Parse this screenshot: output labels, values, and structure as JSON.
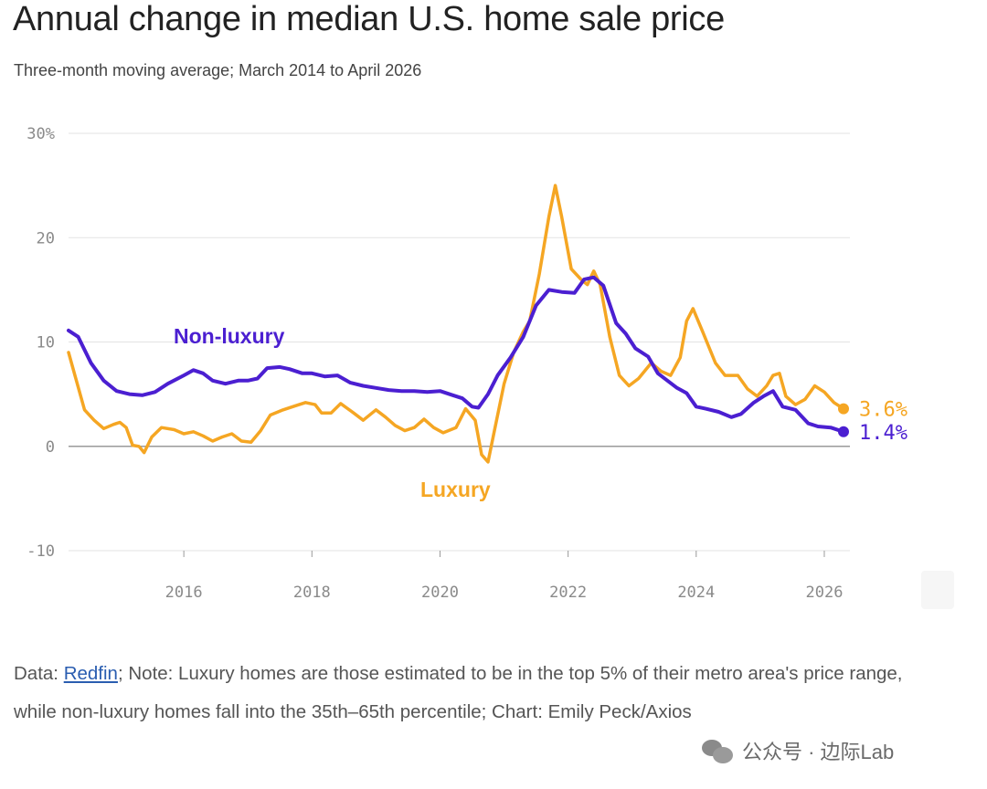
{
  "title": "Annual change in median U.S. home sale price",
  "subtitle": "Three-month moving average; March 2014 to April 2026",
  "chart_data": {
    "type": "line",
    "title": "Annual change in median U.S. home sale price",
    "subtitle": "Three-month moving average; March 2014 to April 2026",
    "xlabel": "",
    "ylabel": "",
    "xlim": [
      2014.2,
      2026.4
    ],
    "ylim": [
      -10,
      30
    ],
    "x_ticks": [
      "2016",
      "2018",
      "2020",
      "2022",
      "2024",
      "2026"
    ],
    "y_ticks": [
      "30%",
      "20",
      "10",
      "0",
      "-10"
    ],
    "grid": true,
    "legend": "inline labels",
    "series": [
      {
        "name": "Non-luxury",
        "color": "#4b1fd1",
        "end_label": "1.4%",
        "points": [
          [
            2014.2,
            11.1
          ],
          [
            2014.35,
            10.5
          ],
          [
            2014.55,
            8.0
          ],
          [
            2014.75,
            6.3
          ],
          [
            2014.95,
            5.3
          ],
          [
            2015.15,
            5.0
          ],
          [
            2015.35,
            4.9
          ],
          [
            2015.55,
            5.2
          ],
          [
            2015.75,
            6.0
          ],
          [
            2016.0,
            6.8
          ],
          [
            2016.15,
            7.3
          ],
          [
            2016.3,
            7.0
          ],
          [
            2016.45,
            6.3
          ],
          [
            2016.65,
            6.0
          ],
          [
            2016.85,
            6.3
          ],
          [
            2017.0,
            6.3
          ],
          [
            2017.15,
            6.5
          ],
          [
            2017.3,
            7.5
          ],
          [
            2017.5,
            7.6
          ],
          [
            2017.65,
            7.4
          ],
          [
            2017.85,
            7.0
          ],
          [
            2018.0,
            7.0
          ],
          [
            2018.2,
            6.7
          ],
          [
            2018.4,
            6.8
          ],
          [
            2018.6,
            6.1
          ],
          [
            2018.8,
            5.8
          ],
          [
            2019.0,
            5.6
          ],
          [
            2019.2,
            5.4
          ],
          [
            2019.4,
            5.3
          ],
          [
            2019.6,
            5.3
          ],
          [
            2019.8,
            5.2
          ],
          [
            2020.0,
            5.3
          ],
          [
            2020.2,
            4.9
          ],
          [
            2020.35,
            4.6
          ],
          [
            2020.5,
            3.8
          ],
          [
            2020.6,
            3.7
          ],
          [
            2020.75,
            5.0
          ],
          [
            2020.9,
            6.8
          ],
          [
            2021.1,
            8.5
          ],
          [
            2021.3,
            10.5
          ],
          [
            2021.5,
            13.5
          ],
          [
            2021.7,
            15.0
          ],
          [
            2021.9,
            14.8
          ],
          [
            2022.1,
            14.7
          ],
          [
            2022.25,
            16.0
          ],
          [
            2022.4,
            16.2
          ],
          [
            2022.55,
            15.4
          ],
          [
            2022.75,
            11.8
          ],
          [
            2022.9,
            10.8
          ],
          [
            2023.05,
            9.4
          ],
          [
            2023.25,
            8.6
          ],
          [
            2023.4,
            7.0
          ],
          [
            2023.55,
            6.3
          ],
          [
            2023.7,
            5.6
          ],
          [
            2023.85,
            5.1
          ],
          [
            2024.0,
            3.8
          ],
          [
            2024.15,
            3.6
          ],
          [
            2024.35,
            3.3
          ],
          [
            2024.55,
            2.8
          ],
          [
            2024.7,
            3.1
          ],
          [
            2024.9,
            4.2
          ],
          [
            2025.05,
            4.8
          ],
          [
            2025.2,
            5.3
          ],
          [
            2025.35,
            3.8
          ],
          [
            2025.55,
            3.5
          ],
          [
            2025.75,
            2.2
          ],
          [
            2025.9,
            1.9
          ],
          [
            2026.1,
            1.8
          ],
          [
            2026.3,
            1.4
          ]
        ]
      },
      {
        "name": "Luxury",
        "color": "#f5a623",
        "end_label": "3.6%",
        "points": [
          [
            2014.2,
            9.0
          ],
          [
            2014.3,
            6.8
          ],
          [
            2014.45,
            3.5
          ],
          [
            2014.6,
            2.5
          ],
          [
            2014.75,
            1.7
          ],
          [
            2014.9,
            2.1
          ],
          [
            2015.0,
            2.3
          ],
          [
            2015.1,
            1.8
          ],
          [
            2015.2,
            0.1
          ],
          [
            2015.3,
            0.0
          ],
          [
            2015.38,
            -0.6
          ],
          [
            2015.5,
            0.9
          ],
          [
            2015.65,
            1.8
          ],
          [
            2015.85,
            1.6
          ],
          [
            2016.0,
            1.2
          ],
          [
            2016.15,
            1.4
          ],
          [
            2016.3,
            1.0
          ],
          [
            2016.45,
            0.5
          ],
          [
            2016.6,
            0.9
          ],
          [
            2016.75,
            1.2
          ],
          [
            2016.9,
            0.5
          ],
          [
            2017.05,
            0.4
          ],
          [
            2017.2,
            1.5
          ],
          [
            2017.35,
            3.0
          ],
          [
            2017.55,
            3.5
          ],
          [
            2017.75,
            3.9
          ],
          [
            2017.9,
            4.2
          ],
          [
            2018.05,
            4.0
          ],
          [
            2018.15,
            3.2
          ],
          [
            2018.3,
            3.2
          ],
          [
            2018.45,
            4.1
          ],
          [
            2018.65,
            3.2
          ],
          [
            2018.8,
            2.5
          ],
          [
            2019.0,
            3.5
          ],
          [
            2019.15,
            2.8
          ],
          [
            2019.3,
            2.0
          ],
          [
            2019.45,
            1.5
          ],
          [
            2019.6,
            1.8
          ],
          [
            2019.75,
            2.6
          ],
          [
            2019.9,
            1.8
          ],
          [
            2020.05,
            1.3
          ],
          [
            2020.25,
            1.8
          ],
          [
            2020.4,
            3.6
          ],
          [
            2020.55,
            2.5
          ],
          [
            2020.65,
            -0.8
          ],
          [
            2020.75,
            -1.5
          ],
          [
            2020.85,
            1.5
          ],
          [
            2021.0,
            6.0
          ],
          [
            2021.15,
            9.0
          ],
          [
            2021.3,
            11.0
          ],
          [
            2021.4,
            12.0
          ],
          [
            2021.55,
            16.5
          ],
          [
            2021.7,
            22.0
          ],
          [
            2021.8,
            25.0
          ],
          [
            2021.9,
            22.0
          ],
          [
            2022.05,
            17.0
          ],
          [
            2022.2,
            16.0
          ],
          [
            2022.3,
            15.5
          ],
          [
            2022.4,
            16.8
          ],
          [
            2022.5,
            15.5
          ],
          [
            2022.65,
            10.5
          ],
          [
            2022.8,
            6.8
          ],
          [
            2022.95,
            5.8
          ],
          [
            2023.1,
            6.5
          ],
          [
            2023.3,
            8.0
          ],
          [
            2023.45,
            7.2
          ],
          [
            2023.6,
            6.8
          ],
          [
            2023.75,
            8.5
          ],
          [
            2023.85,
            12.0
          ],
          [
            2023.95,
            13.2
          ],
          [
            2024.1,
            11.0
          ],
          [
            2024.3,
            8.0
          ],
          [
            2024.45,
            6.8
          ],
          [
            2024.65,
            6.8
          ],
          [
            2024.8,
            5.5
          ],
          [
            2024.95,
            4.8
          ],
          [
            2025.1,
            5.8
          ],
          [
            2025.2,
            6.8
          ],
          [
            2025.3,
            7.0
          ],
          [
            2025.4,
            4.8
          ],
          [
            2025.55,
            4.0
          ],
          [
            2025.7,
            4.5
          ],
          [
            2025.85,
            5.8
          ],
          [
            2026.0,
            5.2
          ],
          [
            2026.15,
            4.2
          ],
          [
            2026.3,
            3.6
          ]
        ]
      }
    ]
  },
  "note": {
    "prefix": "Data: ",
    "link_text": "Redfin",
    "text": "; Note: Luxury homes are those estimated to be in the top 5% of their metro area's price range, while non-luxury homes fall into the 35th–65th percentile; Chart: Emily Peck/Axios"
  },
  "watermark": {
    "text": "公众号 · 边际Lab",
    "icon": "wechat-icon"
  }
}
